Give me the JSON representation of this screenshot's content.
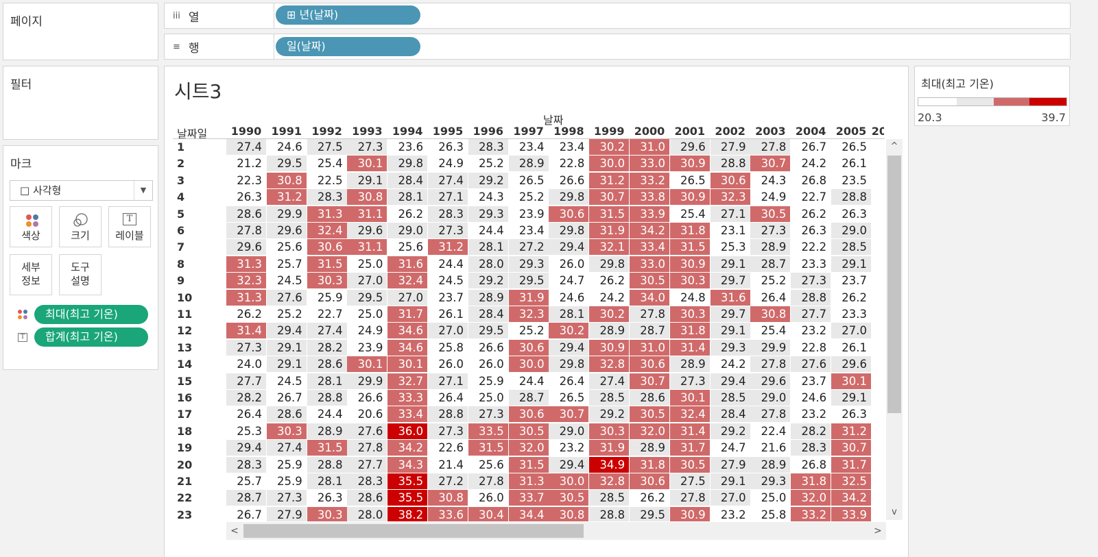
{
  "panels": {
    "pages": "페이지",
    "filters": "필터",
    "marks": "마크"
  },
  "shelves": {
    "columns": {
      "label": "열",
      "icon": "iii",
      "pill": "⊞ 년(날짜)"
    },
    "rows": {
      "label": "행",
      "icon": "≡",
      "pill": "일(날짜)"
    }
  },
  "marks": {
    "type": "□ 사각형",
    "caret": "▼",
    "buttons": [
      {
        "label": "색상"
      },
      {
        "label": "크기"
      },
      {
        "label": "레이블"
      },
      {
        "label": "세부\n정보"
      },
      {
        "label": "도구\n설명"
      }
    ],
    "label_glyph": "T",
    "pills": [
      {
        "label": "최대(최고 기온)",
        "icon": "color-dots"
      },
      {
        "label": "합계(최고 기온)",
        "icon": "text-T"
      }
    ]
  },
  "sheet": {
    "title": "시트3",
    "col_group_header": "날짜",
    "row_header": "날짜일",
    "years": [
      "1990",
      "1991",
      "1992",
      "1993",
      "1994",
      "1995",
      "1996",
      "1997",
      "1998",
      "1999",
      "2000",
      "2001",
      "2002",
      "2003",
      "2004",
      "2005",
      "20"
    ],
    "days": [
      "1",
      "2",
      "3",
      "4",
      "5",
      "6",
      "7",
      "8",
      "9",
      "10",
      "11",
      "12",
      "13",
      "14",
      "15",
      "16",
      "17",
      "18",
      "19",
      "20",
      "21",
      "22",
      "23"
    ],
    "values": [
      [
        27.4,
        24.6,
        27.5,
        27.3,
        23.6,
        26.3,
        28.3,
        23.4,
        23.4,
        30.2,
        31.0,
        29.6,
        27.9,
        27.8,
        26.7,
        26.5
      ],
      [
        21.2,
        29.5,
        25.4,
        30.1,
        29.8,
        24.9,
        25.2,
        28.9,
        22.8,
        30.0,
        33.0,
        30.9,
        28.8,
        30.7,
        24.2,
        26.1
      ],
      [
        22.3,
        30.8,
        22.5,
        29.1,
        28.4,
        27.4,
        29.2,
        26.5,
        26.6,
        31.2,
        33.2,
        26.5,
        30.6,
        24.3,
        26.8,
        23.5
      ],
      [
        26.3,
        31.2,
        28.3,
        30.8,
        28.1,
        27.1,
        24.3,
        25.2,
        29.8,
        30.7,
        33.8,
        30.9,
        32.3,
        24.9,
        22.7,
        28.8
      ],
      [
        28.6,
        29.9,
        31.3,
        31.1,
        26.2,
        28.3,
        29.3,
        23.9,
        30.6,
        31.5,
        33.9,
        25.4,
        27.1,
        30.5,
        26.2,
        26.3
      ],
      [
        27.8,
        29.6,
        32.4,
        29.6,
        29.0,
        27.3,
        24.4,
        23.4,
        29.8,
        31.9,
        34.2,
        31.8,
        23.1,
        27.3,
        26.3,
        29.0
      ],
      [
        29.6,
        25.6,
        30.6,
        31.1,
        25.6,
        31.2,
        28.1,
        27.2,
        29.4,
        32.1,
        33.4,
        31.5,
        25.3,
        28.9,
        22.2,
        28.5
      ],
      [
        31.3,
        25.7,
        31.5,
        25.0,
        31.6,
        24.4,
        28.0,
        29.3,
        26.0,
        29.8,
        33.0,
        30.9,
        29.1,
        28.7,
        23.3,
        29.1
      ],
      [
        32.3,
        24.5,
        30.3,
        27.0,
        32.4,
        24.5,
        29.2,
        29.5,
        24.7,
        26.2,
        30.5,
        30.3,
        29.7,
        25.2,
        27.3,
        23.7
      ],
      [
        31.3,
        27.6,
        25.9,
        29.5,
        27.0,
        23.7,
        28.9,
        31.9,
        24.6,
        24.2,
        34.0,
        24.8,
        31.6,
        26.4,
        28.8,
        26.2
      ],
      [
        26.2,
        25.2,
        22.7,
        25.0,
        31.7,
        26.1,
        28.4,
        32.3,
        28.1,
        30.2,
        27.8,
        30.3,
        29.7,
        30.8,
        27.7,
        23.3
      ],
      [
        31.4,
        29.4,
        27.4,
        24.9,
        34.6,
        27.0,
        29.5,
        25.2,
        30.2,
        28.9,
        28.7,
        31.8,
        29.1,
        25.4,
        23.2,
        27.0
      ],
      [
        27.3,
        29.1,
        28.2,
        23.9,
        34.6,
        25.8,
        26.6,
        30.6,
        29.4,
        30.9,
        31.0,
        31.4,
        29.3,
        29.9,
        22.8,
        26.1
      ],
      [
        24.0,
        29.1,
        28.6,
        30.1,
        30.1,
        26.0,
        26.0,
        30.0,
        29.8,
        32.8,
        30.6,
        28.9,
        24.2,
        27.8,
        27.6,
        29.6
      ],
      [
        27.7,
        24.5,
        28.1,
        29.9,
        32.7,
        27.1,
        25.9,
        24.4,
        26.4,
        27.4,
        30.7,
        27.3,
        29.4,
        29.6,
        23.7,
        30.1
      ],
      [
        28.2,
        26.7,
        28.8,
        26.6,
        33.3,
        26.4,
        25.0,
        28.7,
        26.5,
        28.5,
        28.6,
        30.1,
        28.5,
        29.0,
        24.6,
        29.1
      ],
      [
        26.4,
        28.6,
        24.4,
        20.6,
        33.4,
        28.8,
        27.3,
        30.6,
        30.7,
        29.2,
        30.5,
        32.4,
        28.4,
        27.8,
        23.2,
        26.3
      ],
      [
        25.3,
        30.3,
        28.9,
        27.6,
        36.0,
        27.3,
        33.5,
        30.5,
        29.0,
        30.3,
        32.0,
        31.4,
        29.2,
        22.4,
        28.2,
        31.2
      ],
      [
        29.4,
        27.4,
        31.5,
        27.8,
        34.2,
        22.6,
        31.5,
        32.0,
        23.2,
        31.9,
        28.9,
        31.7,
        24.7,
        21.6,
        28.3,
        30.7
      ],
      [
        28.3,
        25.9,
        28.8,
        27.7,
        34.3,
        21.4,
        25.6,
        31.5,
        29.4,
        34.9,
        31.8,
        30.5,
        27.9,
        28.9,
        26.8,
        31.7
      ],
      [
        25.7,
        25.9,
        28.1,
        28.3,
        35.5,
        27.2,
        27.8,
        31.3,
        30.0,
        32.8,
        30.6,
        27.5,
        29.1,
        29.3,
        31.8,
        32.5
      ],
      [
        28.7,
        27.3,
        26.3,
        28.6,
        35.5,
        30.8,
        26.0,
        33.7,
        30.5,
        28.5,
        26.2,
        27.8,
        27.0,
        25.0,
        32.0,
        34.2
      ],
      [
        26.7,
        27.9,
        30.3,
        28.0,
        38.2,
        33.6,
        30.4,
        34.4,
        30.8,
        28.8,
        29.5,
        30.9,
        23.2,
        25.8,
        33.2,
        33.9
      ]
    ]
  },
  "legend": {
    "title": "최대(최고 기온)",
    "min": "20.3",
    "max": "39.7",
    "colors": [
      "#ffffff",
      "#e8e8e8",
      "#d06a6a",
      "#cc0000"
    ]
  },
  "scroll": {
    "up": "^",
    "down": "v",
    "left": "<",
    "right": ">"
  }
}
